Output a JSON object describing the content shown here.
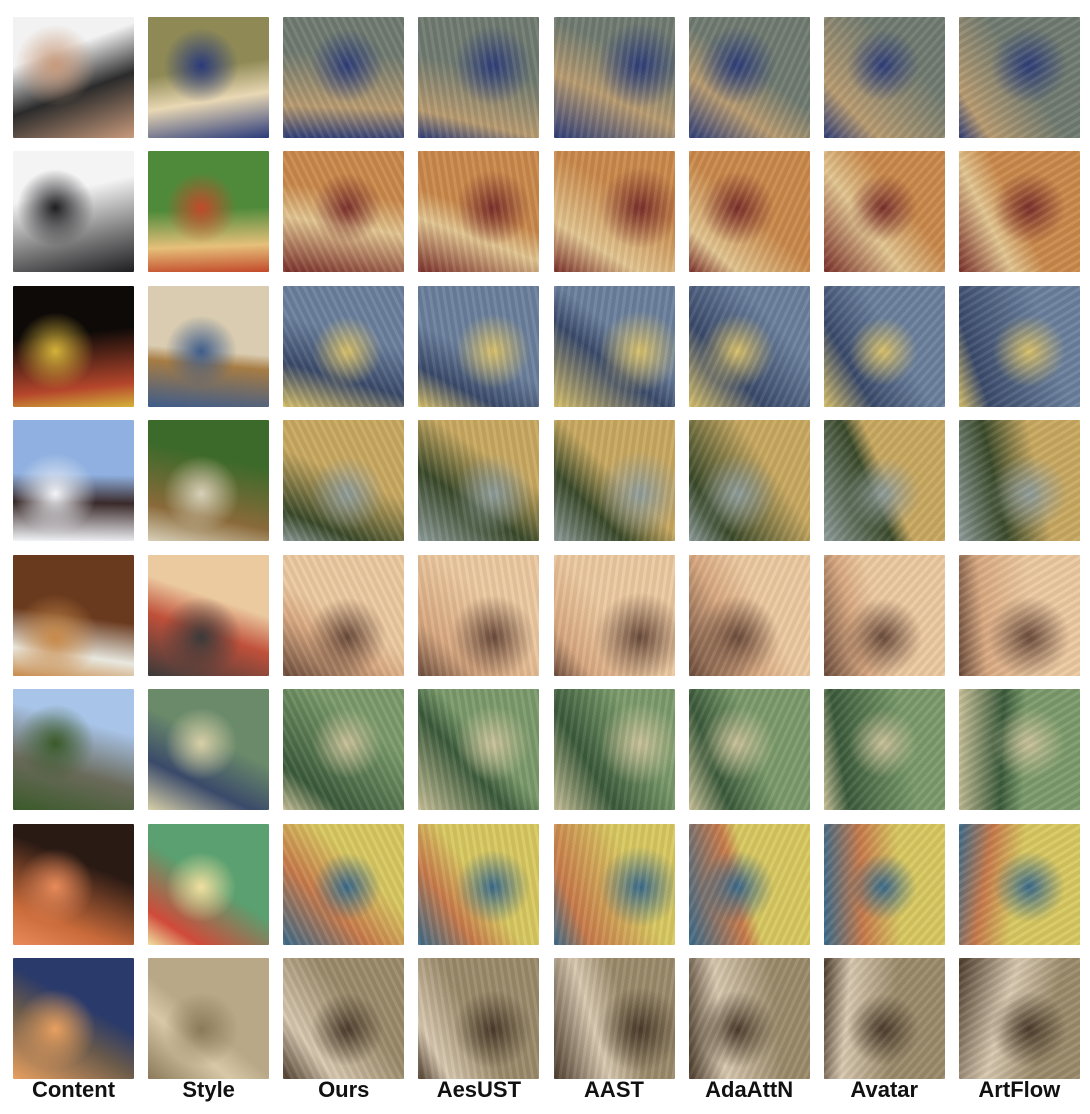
{
  "columns": [
    {
      "label": "Content"
    },
    {
      "label": "Style"
    },
    {
      "label": "Ours"
    },
    {
      "label": "AesUST"
    },
    {
      "label": "AAST"
    },
    {
      "label": "AdaAttN"
    },
    {
      "label": "Avatar"
    },
    {
      "label": "ArtFlow"
    }
  ],
  "rows": [
    {
      "colors": {
        "content": [
          "#f2f2f2",
          "#c89a7c",
          "#2b2b2b"
        ],
        "style": [
          "#8f8a55",
          "#2a3a7a",
          "#e9d8b4"
        ],
        "result": [
          "#6f7a70",
          "#2e3d78",
          "#b89b70"
        ]
      }
    },
    {
      "colors": {
        "content": [
          "#f4f4f4",
          "#1e1e22",
          "#7a7a7a"
        ],
        "style": [
          "#4f8a3a",
          "#c24a2a",
          "#e6c07a"
        ],
        "result": [
          "#c9884a",
          "#7a2f2a",
          "#e2c590"
        ]
      }
    },
    {
      "colors": {
        "content": [
          "#0e0a08",
          "#d4b23a",
          "#b5462c"
        ],
        "style": [
          "#d9ccb0",
          "#3e5c8a",
          "#a67c44"
        ],
        "result": [
          "#6a7f9c",
          "#d8c06a",
          "#3a4a6a"
        ]
      }
    },
    {
      "colors": {
        "content": [
          "#8fb0e0",
          "#f2f4f8",
          "#3a2a2a"
        ],
        "style": [
          "#3c6a2a",
          "#d8d0b8",
          "#8a6a3a"
        ],
        "result": [
          "#c8a860",
          "#8e9c9a",
          "#3a4a2a"
        ]
      }
    },
    {
      "colors": {
        "content": [
          "#6a3a1e",
          "#c88a4a",
          "#e8e8e0"
        ],
        "style": [
          "#eccaa0",
          "#3a3a3a",
          "#c0503a"
        ],
        "result": [
          "#ecc9a0",
          "#6a4a3a",
          "#d8a880"
        ]
      }
    },
    {
      "colors": {
        "content": [
          "#a8c4e8",
          "#3a5a2a",
          "#6a6a5a"
        ],
        "style": [
          "#6a8a6a",
          "#d8d0a8",
          "#3a4a6a"
        ],
        "result": [
          "#7a9a6a",
          "#c8c098",
          "#3a5a3a"
        ]
      }
    },
    {
      "colors": {
        "content": [
          "#2a1a14",
          "#e88a5a",
          "#c86a3a"
        ],
        "style": [
          "#5aa070",
          "#f0e0a0",
          "#d04a3a"
        ],
        "result": [
          "#d8c860",
          "#3a6a8a",
          "#c87a4a"
        ]
      }
    },
    {
      "colors": {
        "content": [
          "#2a3a6a",
          "#e8a060",
          "#6a5a4a"
        ],
        "style": [
          "#b8a888",
          "#8a7a5a",
          "#d8c8a8"
        ],
        "result": [
          "#9a8a6a",
          "#4a3a2a",
          "#d8c8b0"
        ]
      }
    }
  ]
}
